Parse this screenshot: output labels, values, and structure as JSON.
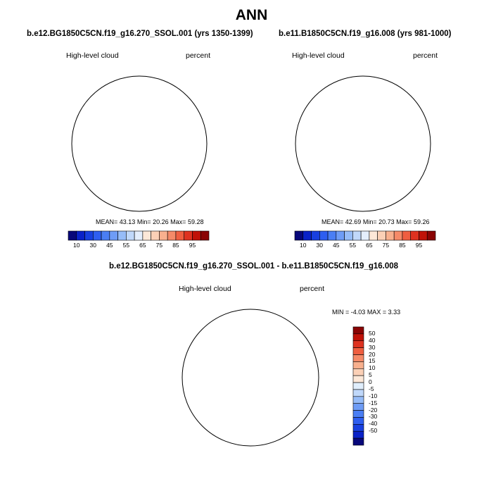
{
  "page": {
    "title": "ANN"
  },
  "panels": [
    {
      "id": "top-left",
      "case_title": "b.e12.BG1850C5CN.f19_g16.270_SSOL.001 (yrs 1350-1399)",
      "left_label": "High-level cloud",
      "right_label": "percent",
      "mean_label": "MEAN=",
      "mean": "43.13",
      "min_label": "Min=",
      "min": "20.26",
      "max_label": "Max=",
      "max": "59.28"
    },
    {
      "id": "top-right",
      "case_title": "b.e11.B1850C5CN.f19_g16.008 (yrs 981-1000)",
      "left_label": "High-level cloud",
      "right_label": "percent",
      "mean_label": "MEAN=",
      "mean": "42.69",
      "min_label": "Min=",
      "min": "20.73",
      "max_label": "Max=",
      "max": "59.26"
    }
  ],
  "diff_panel": {
    "case_title": "b.e12.BG1850C5CN.f19_g16.270_SSOL.001 - b.e11.B1850C5CN.f19_g16.008",
    "left_label": "High-level cloud",
    "right_label": "percent",
    "min_label": "MIN =",
    "min": "-4.03",
    "max_label": "MAX =",
    "max": "3.33"
  },
  "colorbar_top": {
    "colors": [
      "#08087a",
      "#0a22c8",
      "#1840e0",
      "#2e5ef0",
      "#4a7ef4",
      "#6e9cf6",
      "#96bcf8",
      "#c0d8fa",
      "#e4eefc",
      "#fde8d8",
      "#fbd0b6",
      "#f8b08e",
      "#f58a68",
      "#ef5e40",
      "#de3220",
      "#c01208",
      "#8a0404"
    ],
    "tick_labels": [
      "10",
      "30",
      "45",
      "55",
      "65",
      "75",
      "85",
      "95"
    ]
  },
  "colorbar_diff": {
    "colors": [
      "#8a0404",
      "#c01208",
      "#de3220",
      "#ef5e40",
      "#f58a68",
      "#f8b08e",
      "#fbd0b6",
      "#fde8d8",
      "#e0eefc",
      "#c0d8fa",
      "#96bcf8",
      "#6e9cf6",
      "#4a7ef4",
      "#2e5ef0",
      "#1840e0",
      "#0a22c8",
      "#08087a"
    ],
    "tick_labels": [
      "50",
      "40",
      "30",
      "20",
      "15",
      "10",
      "5",
      "0",
      "-5",
      "-10",
      "-15",
      "-20",
      "-30",
      "-40",
      "-50"
    ]
  },
  "map_colors": {
    "background_blue": "#3d6ee8",
    "mid_blue": "#5a8af0",
    "light_blue": "#86aaf4",
    "pale_blue": "#b6cff8",
    "very_pale": "#e2ecfc",
    "dark_blue": "#2050d8",
    "deep_blue": "#1838c0",
    "diff_positive": "#fde8d8",
    "diff_negative": "#dbeafb",
    "coast": "#000000"
  }
}
